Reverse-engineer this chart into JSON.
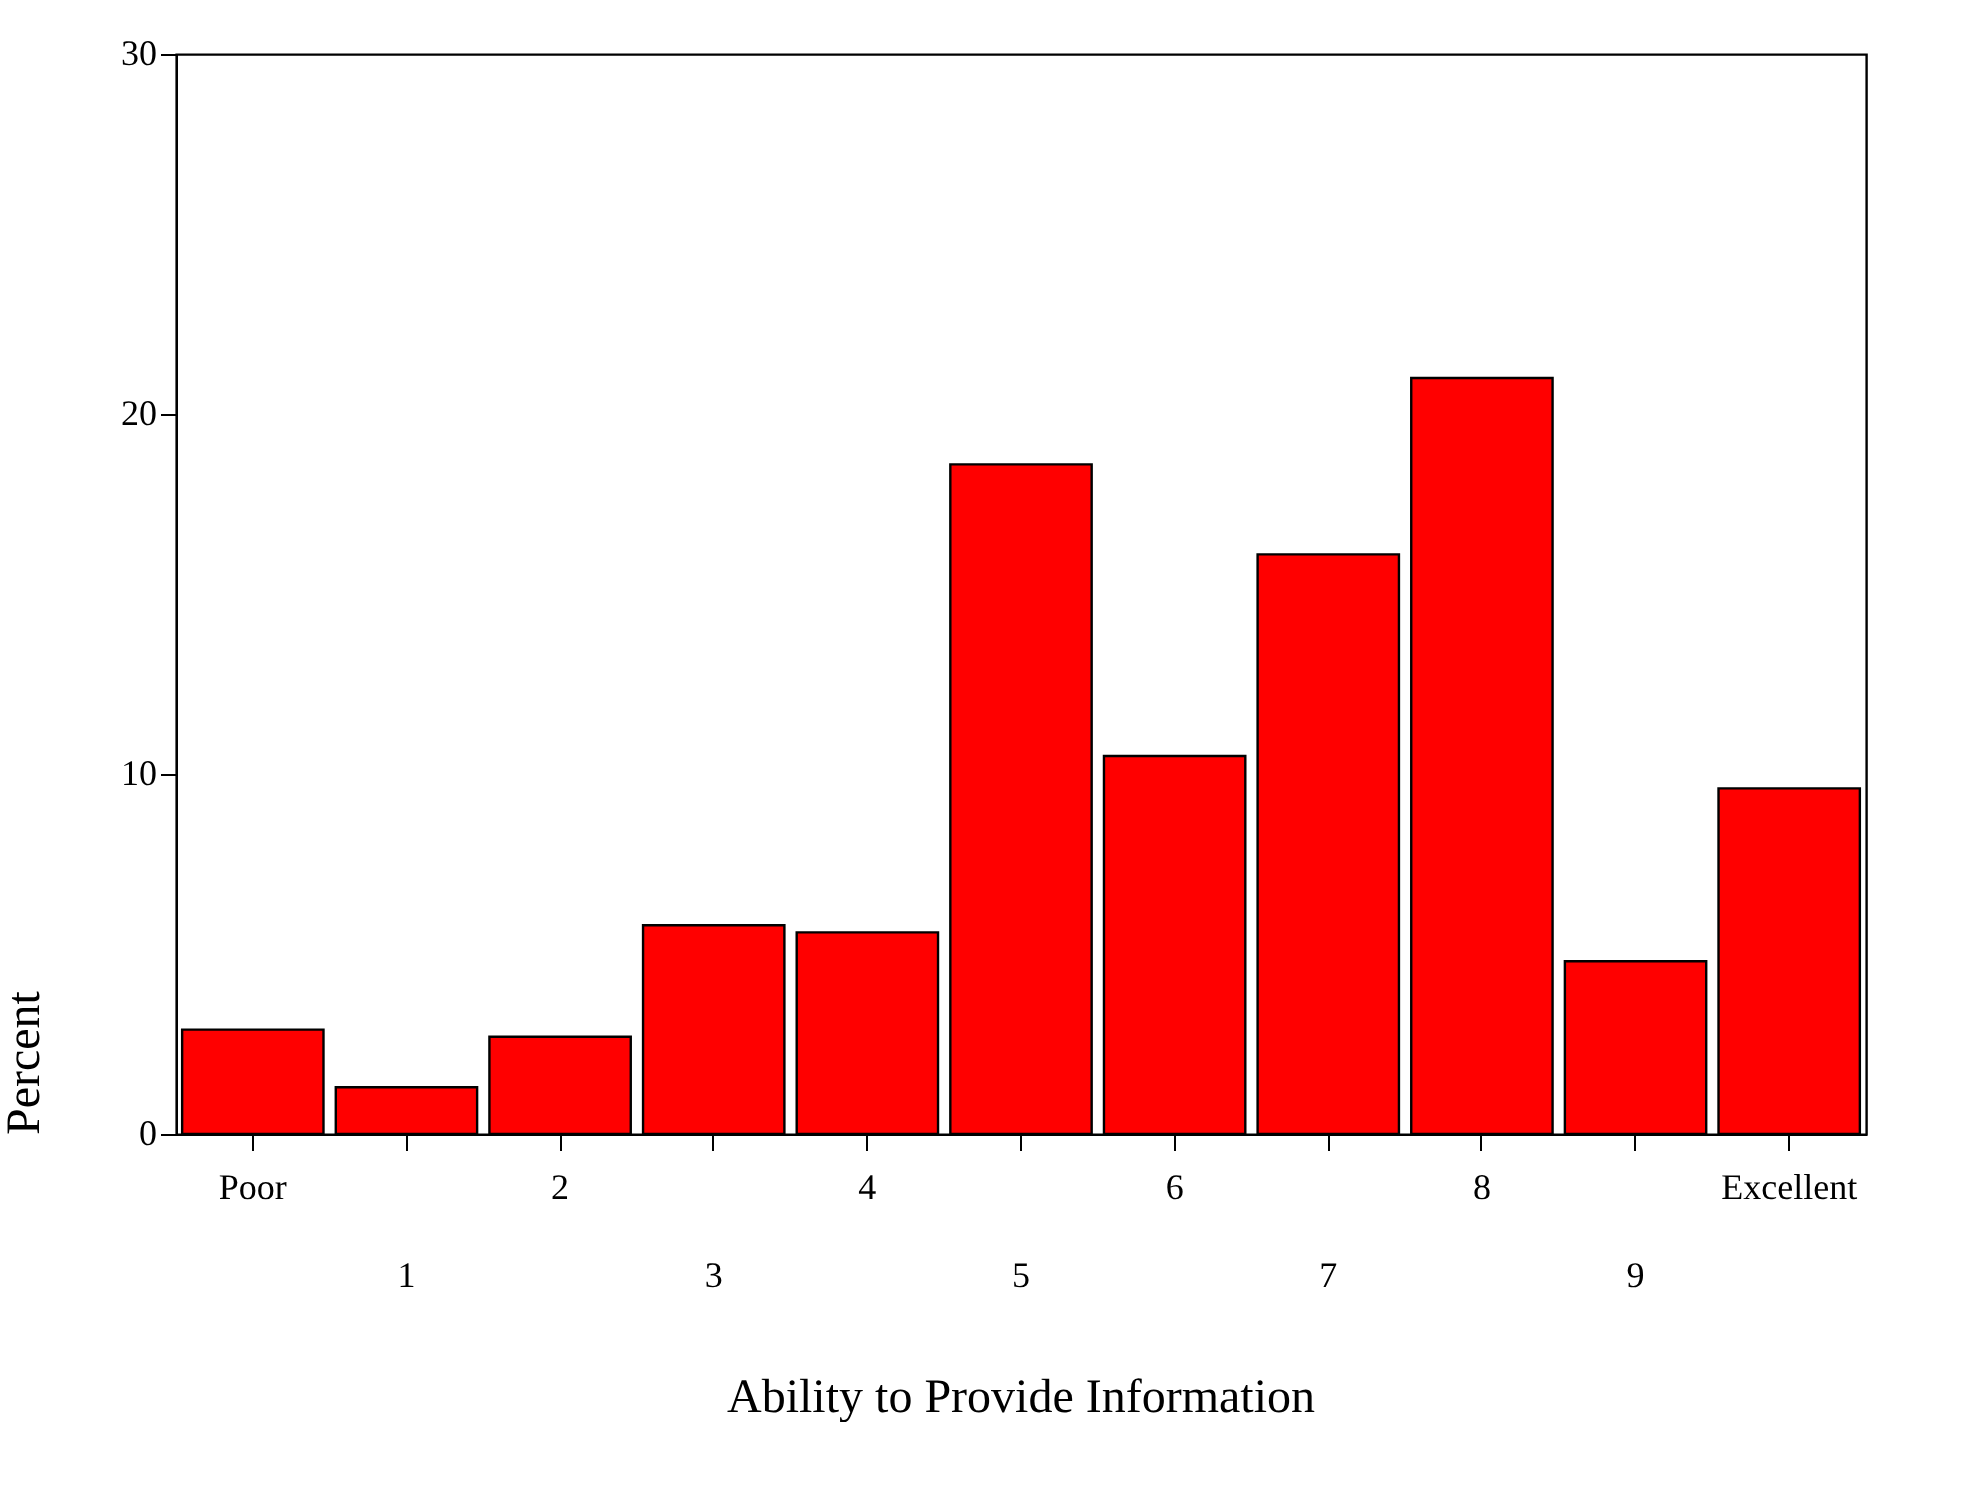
{
  "chart_data": {
    "type": "bar",
    "xlabel": "Ability to Provide Information",
    "ylabel": "Percent",
    "categories": [
      "Poor",
      "1",
      "2",
      "3",
      "4",
      "5",
      "6",
      "7",
      "8",
      "9",
      "Excellent"
    ],
    "values": [
      2.9,
      1.3,
      2.7,
      5.8,
      5.6,
      18.6,
      10.5,
      16.1,
      21.0,
      4.8,
      9.6
    ],
    "color": "#ff0000",
    "ylim": [
      0,
      30
    ],
    "yticks": [
      0,
      10,
      20,
      30
    ],
    "grid": false
  }
}
